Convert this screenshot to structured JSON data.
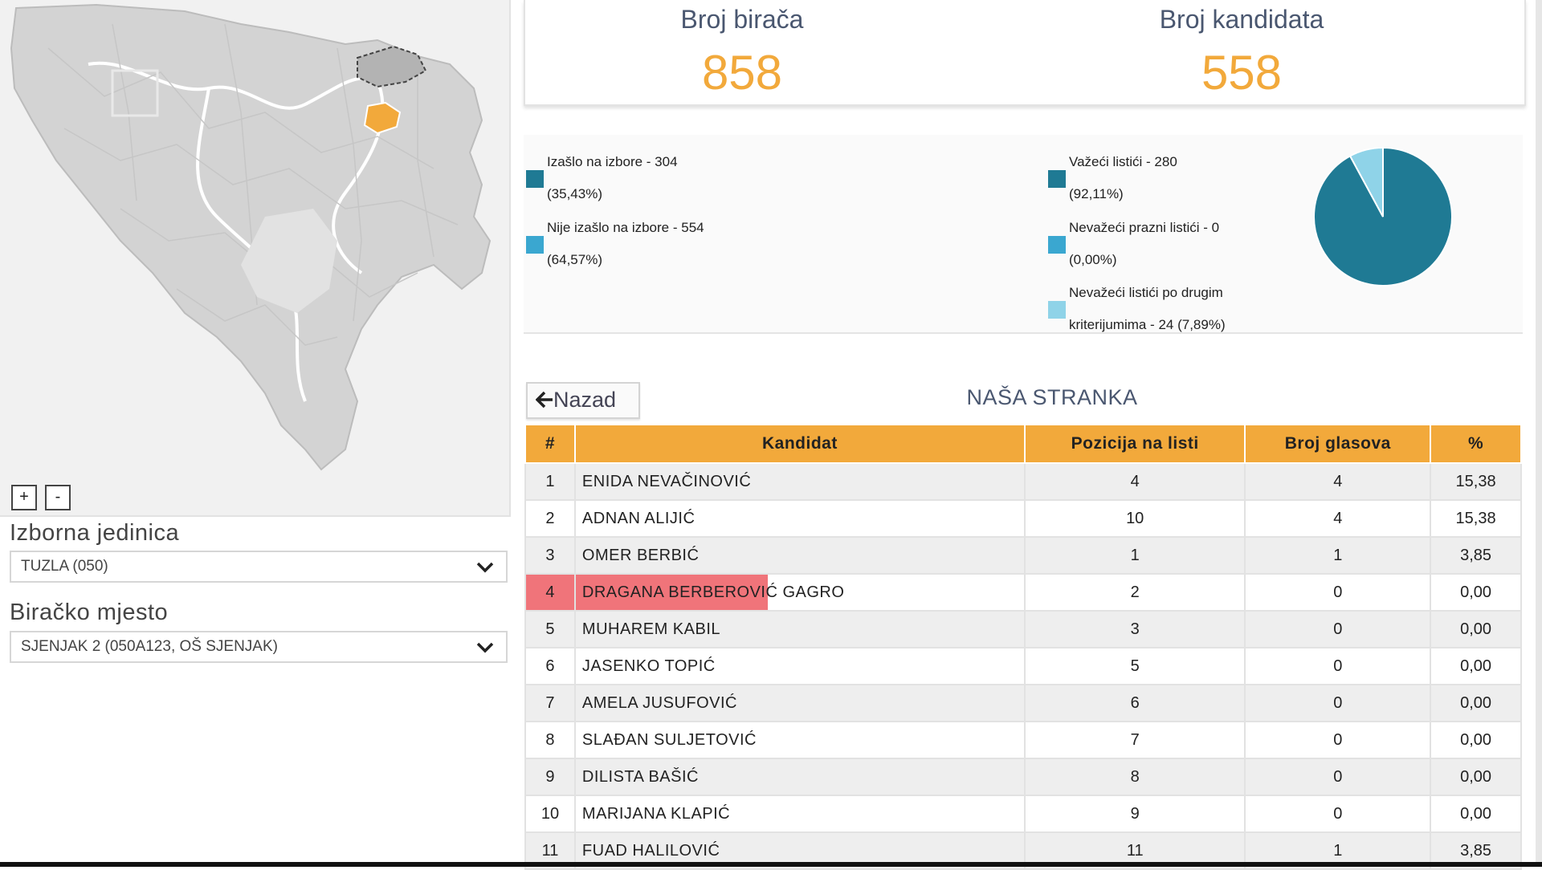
{
  "map": {
    "zoom_in_label": "+",
    "zoom_out_label": "-",
    "highlight_color": "#f2a93b"
  },
  "filters": {
    "unit_label": "Izborna jedinica",
    "unit_value": "TUZLA (050)",
    "place_label": "Biračko mjesto",
    "place_value": "SJENJAK 2 (050A123, OŠ SJENJAK)"
  },
  "stats": {
    "voters_label": "Broj birača",
    "voters_value": "858",
    "candidates_label": "Broj kandidata",
    "candidates_value": "558",
    "value_color": "#f2a93b"
  },
  "turnout": {
    "voted_line1": "Izašlo na izbore - 304",
    "voted_line2": "(35,43%)",
    "not_voted_line1": "Nije izašlo na izbore - 554",
    "not_voted_line2": "(64,57%)",
    "colors": {
      "voted": "#1f7a94",
      "not_voted": "#3aa7d0"
    }
  },
  "ballots": {
    "valid_line1": "Važeći listići - 280",
    "valid_line2": "(92,11%)",
    "invalid_empty_line1": "Nevažeći prazni listići - 0",
    "invalid_empty_line2": "(0,00%)",
    "invalid_other_line1": "Nevažeći listići po drugim",
    "invalid_other_line2": "kriterijumima - 24 (7,89%)",
    "colors": {
      "valid": "#1f7a94",
      "invalid_empty": "#3aa7d0",
      "invalid_other": "#8fd3e8"
    },
    "pie_values": [
      280,
      0,
      24
    ]
  },
  "results": {
    "back_label": "Nazad",
    "party_name": "NAŠA STRANKA",
    "headers": [
      "#",
      "Kandidat",
      "Pozicija na listi",
      "Broj glasova",
      "%"
    ],
    "rows": [
      {
        "n": "1",
        "name": "ENIDA NEVAČINOVIĆ",
        "pos": "4",
        "votes": "4",
        "pct": "15,38"
      },
      {
        "n": "2",
        "name": "ADNAN ALIJIĆ",
        "pos": "10",
        "votes": "4",
        "pct": "15,38"
      },
      {
        "n": "3",
        "name": "OMER BERBIĆ",
        "pos": "1",
        "votes": "1",
        "pct": "3,85"
      },
      {
        "n": "4",
        "name": "DRAGANA BERBEROVIĆ GAGRO",
        "pos": "2",
        "votes": "0",
        "pct": "0,00"
      },
      {
        "n": "5",
        "name": "MUHAREM KABIL",
        "pos": "3",
        "votes": "0",
        "pct": "0,00"
      },
      {
        "n": "6",
        "name": "JASENKO TOPIĆ",
        "pos": "5",
        "votes": "0",
        "pct": "0,00"
      },
      {
        "n": "7",
        "name": "AMELA JUSUFOVIĆ",
        "pos": "6",
        "votes": "0",
        "pct": "0,00"
      },
      {
        "n": "8",
        "name": "SLAĐAN SULJETOVIĆ",
        "pos": "7",
        "votes": "0",
        "pct": "0,00"
      },
      {
        "n": "9",
        "name": "DILISTA BAŠIĆ",
        "pos": "8",
        "votes": "0",
        "pct": "0,00"
      },
      {
        "n": "10",
        "name": "MARIJANA KLAPIĆ",
        "pos": "9",
        "votes": "0",
        "pct": "0,00"
      },
      {
        "n": "11",
        "name": "FUAD HALILOVIĆ",
        "pos": "11",
        "votes": "1",
        "pct": "3,85"
      }
    ],
    "highlight_row": "4",
    "highlight_color": "#f0747a"
  }
}
